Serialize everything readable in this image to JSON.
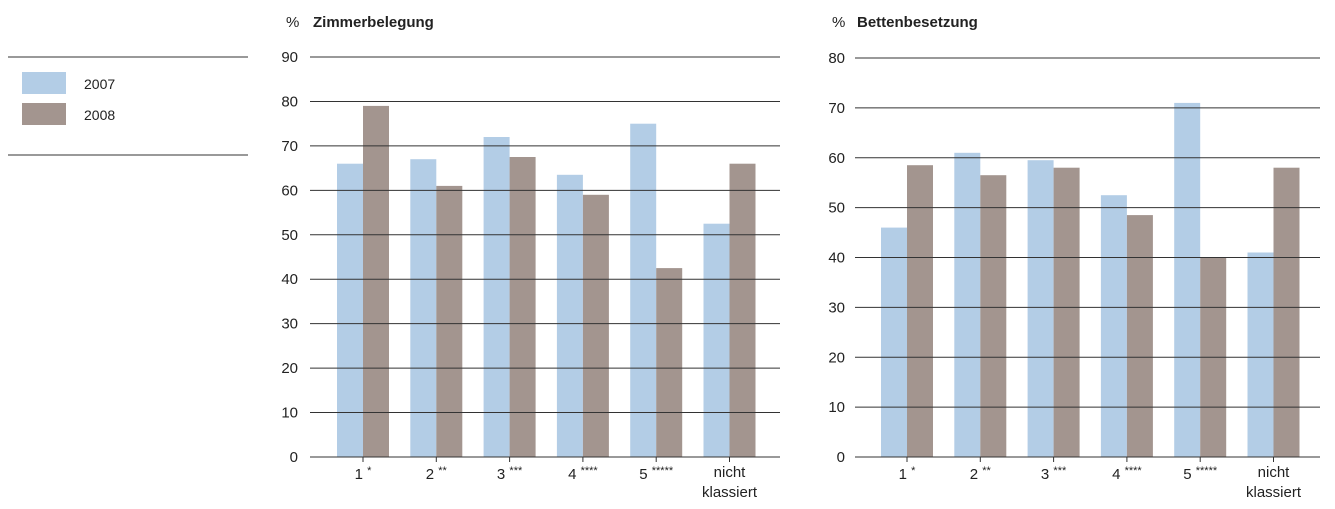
{
  "legend": {
    "items": [
      {
        "label": "2007",
        "color": "#b3cde6"
      },
      {
        "label": "2008",
        "color": "#a3958f"
      }
    ]
  },
  "colors": {
    "series_2007": "#b3cde6",
    "series_2008": "#a3958f",
    "gridline": "#333333"
  },
  "chart_data": [
    {
      "type": "bar",
      "title": "Zimmerbelegung",
      "unit_label": "%",
      "categories": [
        "1 *",
        "2 **",
        "3 ***",
        "4 ****",
        "5 *****",
        "nicht klassiert"
      ],
      "series": [
        {
          "name": "2007",
          "values": [
            66,
            67,
            72,
            63.5,
            75,
            52.5
          ]
        },
        {
          "name": "2008",
          "values": [
            79,
            61,
            67.5,
            59,
            42.5,
            66
          ]
        }
      ],
      "ylim": [
        0,
        90
      ],
      "yticks": [
        0,
        10,
        20,
        30,
        40,
        50,
        60,
        70,
        80,
        90
      ],
      "grid": true,
      "legend": "left"
    },
    {
      "type": "bar",
      "title": "Bettenbesetzung",
      "unit_label": "%",
      "categories": [
        "1 *",
        "2 **",
        "3 ***",
        "4 ****",
        "5 *****",
        "nicht klassiert"
      ],
      "series": [
        {
          "name": "2007",
          "values": [
            46,
            61,
            59.5,
            52.5,
            71,
            41
          ]
        },
        {
          "name": "2008",
          "values": [
            58.5,
            56.5,
            58,
            48.5,
            40,
            58
          ]
        }
      ],
      "ylim": [
        0,
        80
      ],
      "yticks": [
        0,
        10,
        20,
        30,
        40,
        50,
        60,
        70,
        80
      ],
      "grid": true,
      "legend": "left"
    }
  ]
}
